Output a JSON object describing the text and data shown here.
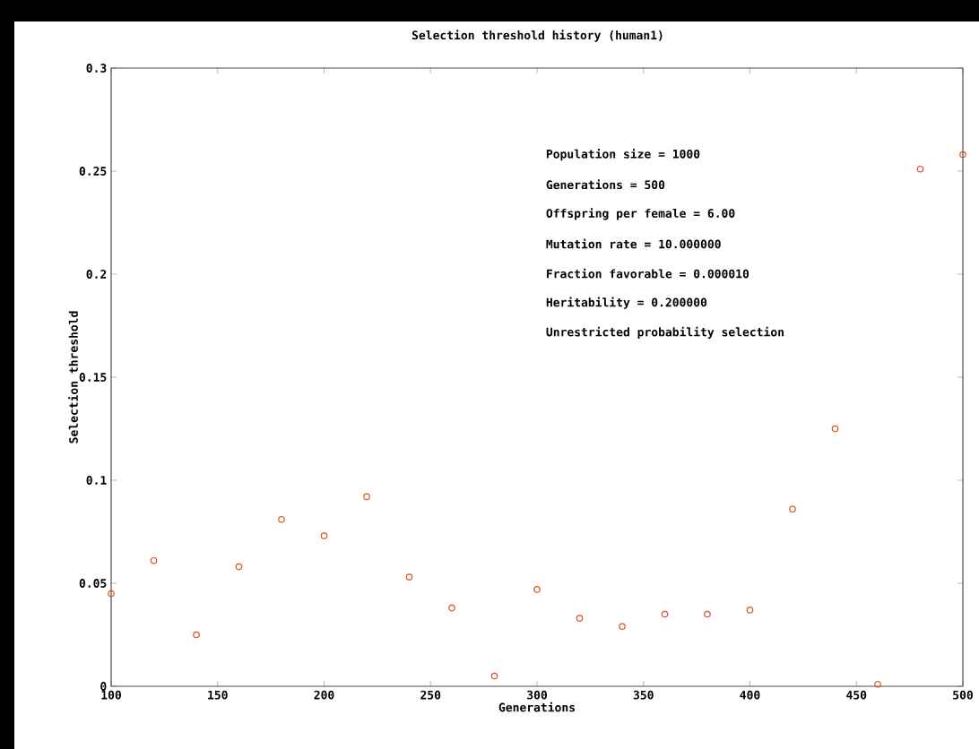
{
  "chart_data": {
    "type": "scatter",
    "title": "Selection threshold history (human1)",
    "xlabel": "Generations",
    "ylabel": "Selection threshold",
    "x": [
      100,
      120,
      140,
      160,
      180,
      200,
      220,
      240,
      260,
      280,
      300,
      320,
      340,
      360,
      380,
      400,
      420,
      440,
      460,
      480,
      500
    ],
    "series": [
      {
        "color": "#d9541e",
        "values": [
          0.045,
          0.061,
          0.025,
          0.058,
          0.081,
          0.073,
          0.092,
          0.053,
          0.038,
          0.005,
          0.047,
          0.033,
          0.029,
          0.035,
          0.035,
          0.037,
          0.086,
          0.125,
          0.001,
          0.251,
          0.258
        ]
      }
    ],
    "xlim": [
      100,
      500
    ],
    "ylim": [
      0,
      0.3
    ],
    "xticks": [
      100,
      150,
      200,
      250,
      300,
      350,
      400,
      450,
      500
    ],
    "yticks": [
      0,
      0.05,
      0.1,
      0.15,
      0.2,
      0.25,
      0.3
    ],
    "marker": "circle",
    "grid": false,
    "annotations": [
      "Population size = 1000",
      "Generations = 500",
      "Offspring per female = 6.00",
      "Mutation rate = 10.000000",
      "Fraction favorable = 0.000010",
      "Heritability = 0.200000",
      "Unrestricted probability selection"
    ]
  }
}
